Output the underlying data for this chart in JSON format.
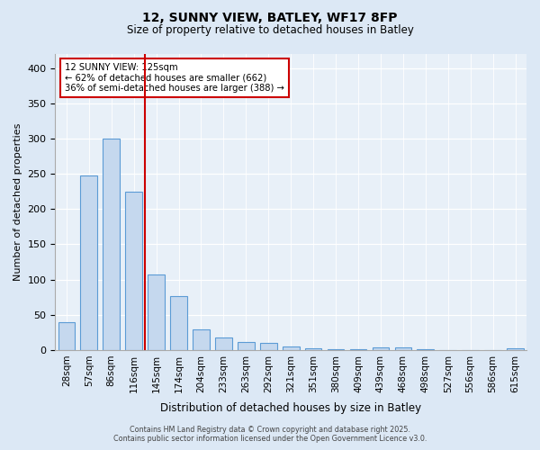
{
  "title_line1": "12, SUNNY VIEW, BATLEY, WF17 8FP",
  "title_line2": "Size of property relative to detached houses in Batley",
  "xlabel": "Distribution of detached houses by size in Batley",
  "ylabel": "Number of detached properties",
  "categories": [
    "28sqm",
    "57sqm",
    "86sqm",
    "116sqm",
    "145sqm",
    "174sqm",
    "204sqm",
    "233sqm",
    "263sqm",
    "292sqm",
    "321sqm",
    "351sqm",
    "380sqm",
    "409sqm",
    "439sqm",
    "468sqm",
    "498sqm",
    "527sqm",
    "556sqm",
    "586sqm",
    "615sqm"
  ],
  "values": [
    40,
    248,
    300,
    225,
    107,
    77,
    29,
    18,
    11,
    10,
    5,
    3,
    1,
    1,
    4,
    4,
    1,
    0,
    0,
    0,
    2
  ],
  "bar_color": "#c5d8ee",
  "bar_edge_color": "#5b9bd5",
  "vline_x": 3.5,
  "vline_color": "#cc0000",
  "annotation_text": "12 SUNNY VIEW: 125sqm\n← 62% of detached houses are smaller (662)\n36% of semi-detached houses are larger (388) →",
  "annotation_box_color": "#ffffff",
  "annotation_box_edge": "#cc0000",
  "ylim": [
    0,
    420
  ],
  "yticks": [
    0,
    50,
    100,
    150,
    200,
    250,
    300,
    350,
    400
  ],
  "footer_line1": "Contains HM Land Registry data © Crown copyright and database right 2025.",
  "footer_line2": "Contains public sector information licensed under the Open Government Licence v3.0.",
  "bg_color": "#dce8f5",
  "plot_bg_color": "#e8f0f8"
}
